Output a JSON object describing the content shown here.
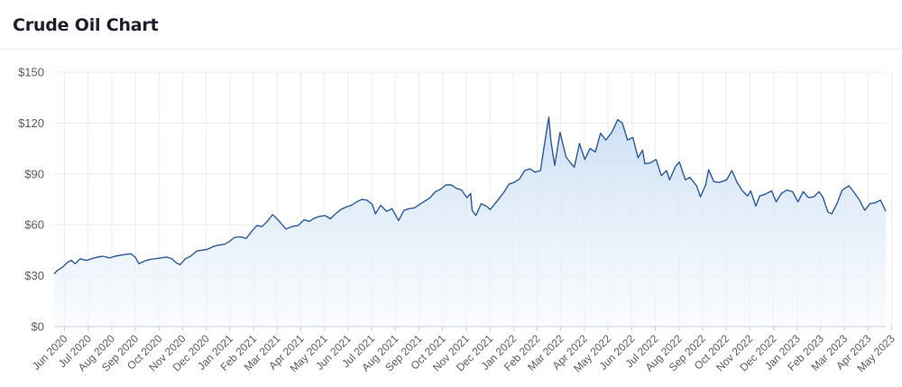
{
  "page": {
    "title": "Crude Oil Chart"
  },
  "colors": {
    "line": "#2a5a9e",
    "area_top": "#c9def3",
    "area_bottom": "#f6f9fd",
    "grid": "#ececec",
    "axis": "#c8cdd4",
    "tick_text": "#555b66"
  },
  "chart_data": {
    "type": "area",
    "title": "Crude Oil Chart",
    "xlabel": "",
    "ylabel": "",
    "y_ticks": [
      "$0",
      "$30",
      "$60",
      "$90",
      "$120",
      "$150"
    ],
    "y_tick_values": [
      0,
      30,
      60,
      90,
      120,
      150
    ],
    "ylim": [
      0,
      150
    ],
    "x_ticks": [
      "Jun 2020",
      "Jul 2020",
      "Aug 2020",
      "Sep 2020",
      "Oct 2020",
      "Nov 2020",
      "Dec 2020",
      "Jan 2021",
      "Feb 2021",
      "Mar 2021",
      "Apr 2021",
      "May 2021",
      "Jun 2021",
      "Jul 2021",
      "Aug 2021",
      "Sep 2021",
      "Oct 2021",
      "Nov 2021",
      "Dec 2021",
      "Jan 2022",
      "Feb 2022",
      "Mar 2022",
      "Apr 2022",
      "May 2022",
      "Jun 2022",
      "Jul 2022",
      "Aug 2022",
      "Sep 2022",
      "Oct 2022",
      "Nov 2022",
      "Dec 2022",
      "Jan 2023",
      "Feb 2023",
      "Mar 2023",
      "Apr 2023",
      "May 2023"
    ],
    "xlim": [
      "2020-05-18",
      "2023-05-31"
    ],
    "grid": true,
    "legend": "none",
    "series": [
      {
        "name": "",
        "points": [
          [
            "2020-05-18",
            31
          ],
          [
            "2020-05-22",
            33
          ],
          [
            "2020-05-29",
            35
          ],
          [
            "2020-06-05",
            38
          ],
          [
            "2020-06-10",
            39
          ],
          [
            "2020-06-15",
            37
          ],
          [
            "2020-06-22",
            40
          ],
          [
            "2020-06-30",
            39
          ],
          [
            "2020-07-07",
            40
          ],
          [
            "2020-07-15",
            41
          ],
          [
            "2020-07-22",
            41.5
          ],
          [
            "2020-07-31",
            40.5
          ],
          [
            "2020-08-07",
            41.5
          ],
          [
            "2020-08-14",
            42
          ],
          [
            "2020-08-21",
            42.5
          ],
          [
            "2020-08-28",
            43
          ],
          [
            "2020-09-03",
            41
          ],
          [
            "2020-09-08",
            37
          ],
          [
            "2020-09-15",
            38.5
          ],
          [
            "2020-09-22",
            39.5
          ],
          [
            "2020-09-30",
            40
          ],
          [
            "2020-10-07",
            40.5
          ],
          [
            "2020-10-15",
            41
          ],
          [
            "2020-10-22",
            40
          ],
          [
            "2020-10-28",
            37.5
          ],
          [
            "2020-11-02",
            36.5
          ],
          [
            "2020-11-09",
            40
          ],
          [
            "2020-11-16",
            41.5
          ],
          [
            "2020-11-24",
            44.5
          ],
          [
            "2020-11-30",
            45
          ],
          [
            "2020-12-08",
            45.5
          ],
          [
            "2020-12-15",
            47
          ],
          [
            "2020-12-22",
            48
          ],
          [
            "2020-12-31",
            48.5
          ],
          [
            "2021-01-06",
            50
          ],
          [
            "2021-01-13",
            52.5
          ],
          [
            "2021-01-20",
            53
          ],
          [
            "2021-01-29",
            52
          ],
          [
            "2021-02-05",
            56
          ],
          [
            "2021-02-12",
            59.5
          ],
          [
            "2021-02-19",
            59
          ],
          [
            "2021-02-26",
            62
          ],
          [
            "2021-03-05",
            66
          ],
          [
            "2021-03-10",
            64
          ],
          [
            "2021-03-18",
            60
          ],
          [
            "2021-03-23",
            57.5
          ],
          [
            "2021-03-31",
            59
          ],
          [
            "2021-04-08",
            59.5
          ],
          [
            "2021-04-16",
            63
          ],
          [
            "2021-04-23",
            62
          ],
          [
            "2021-04-30",
            64
          ],
          [
            "2021-05-07",
            65
          ],
          [
            "2021-05-14",
            65.5
          ],
          [
            "2021-05-21",
            63.5
          ],
          [
            "2021-05-28",
            66.5
          ],
          [
            "2021-06-04",
            69
          ],
          [
            "2021-06-11",
            70.5
          ],
          [
            "2021-06-18",
            71.5
          ],
          [
            "2021-06-25",
            73.5
          ],
          [
            "2021-07-02",
            75
          ],
          [
            "2021-07-09",
            74.5
          ],
          [
            "2021-07-16",
            72
          ],
          [
            "2021-07-20",
            66.5
          ],
          [
            "2021-07-27",
            71.5
          ],
          [
            "2021-08-04",
            68
          ],
          [
            "2021-08-11",
            69.5
          ],
          [
            "2021-08-20",
            62.5
          ],
          [
            "2021-08-27",
            68.5
          ],
          [
            "2021-09-03",
            69.5
          ],
          [
            "2021-09-10",
            70
          ],
          [
            "2021-09-17",
            72
          ],
          [
            "2021-09-24",
            74
          ],
          [
            "2021-10-01",
            76
          ],
          [
            "2021-10-08",
            79.5
          ],
          [
            "2021-10-15",
            81
          ],
          [
            "2021-10-22",
            83.5
          ],
          [
            "2021-10-29",
            83.5
          ],
          [
            "2021-11-05",
            81.5
          ],
          [
            "2021-11-12",
            80.5
          ],
          [
            "2021-11-19",
            76
          ],
          [
            "2021-11-24",
            78.5
          ],
          [
            "2021-11-26",
            68.5
          ],
          [
            "2021-12-01",
            65.5
          ],
          [
            "2021-12-08",
            72.5
          ],
          [
            "2021-12-15",
            71
          ],
          [
            "2021-12-20",
            69
          ],
          [
            "2021-12-31",
            75
          ],
          [
            "2022-01-07",
            79
          ],
          [
            "2022-01-14",
            84
          ],
          [
            "2022-01-21",
            85
          ],
          [
            "2022-01-28",
            87
          ],
          [
            "2022-02-04",
            92
          ],
          [
            "2022-02-11",
            93
          ],
          [
            "2022-02-18",
            91
          ],
          [
            "2022-02-25",
            92
          ],
          [
            "2022-03-01",
            103.5
          ],
          [
            "2022-03-08",
            123.5
          ],
          [
            "2022-03-11",
            109
          ],
          [
            "2022-03-16",
            95
          ],
          [
            "2022-03-23",
            114.5
          ],
          [
            "2022-03-31",
            100
          ],
          [
            "2022-04-07",
            96
          ],
          [
            "2022-04-11",
            94
          ],
          [
            "2022-04-18",
            108
          ],
          [
            "2022-04-25",
            98.5
          ],
          [
            "2022-05-02",
            105
          ],
          [
            "2022-05-09",
            103
          ],
          [
            "2022-05-16",
            114
          ],
          [
            "2022-05-23",
            110
          ],
          [
            "2022-05-31",
            114.5
          ],
          [
            "2022-06-08",
            122
          ],
          [
            "2022-06-14",
            120
          ],
          [
            "2022-06-21",
            110
          ],
          [
            "2022-06-28",
            111.5
          ],
          [
            "2022-07-05",
            99.5
          ],
          [
            "2022-07-11",
            104
          ],
          [
            "2022-07-14",
            96
          ],
          [
            "2022-07-21",
            96.5
          ],
          [
            "2022-07-29",
            98.5
          ],
          [
            "2022-08-05",
            89
          ],
          [
            "2022-08-12",
            92
          ],
          [
            "2022-08-16",
            86.5
          ],
          [
            "2022-08-24",
            94.5
          ],
          [
            "2022-08-29",
            97
          ],
          [
            "2022-09-06",
            86.5
          ],
          [
            "2022-09-12",
            88
          ],
          [
            "2022-09-21",
            83
          ],
          [
            "2022-09-26",
            76.5
          ],
          [
            "2022-10-03",
            83.5
          ],
          [
            "2022-10-07",
            92.5
          ],
          [
            "2022-10-14",
            85.5
          ],
          [
            "2022-10-21",
            85
          ],
          [
            "2022-10-31",
            86.5
          ],
          [
            "2022-11-07",
            92
          ],
          [
            "2022-11-14",
            85
          ],
          [
            "2022-11-21",
            80
          ],
          [
            "2022-11-28",
            77
          ],
          [
            "2022-12-02",
            80
          ],
          [
            "2022-12-09",
            71
          ],
          [
            "2022-12-14",
            77
          ],
          [
            "2022-12-21",
            78
          ],
          [
            "2022-12-30",
            80
          ],
          [
            "2023-01-05",
            73.5
          ],
          [
            "2023-01-12",
            78.5
          ],
          [
            "2023-01-19",
            80.5
          ],
          [
            "2023-01-27",
            79.5
          ],
          [
            "2023-02-03",
            73.5
          ],
          [
            "2023-02-10",
            79.5
          ],
          [
            "2023-02-17",
            76
          ],
          [
            "2023-02-24",
            76.5
          ],
          [
            "2023-03-03",
            79.5
          ],
          [
            "2023-03-08",
            76.5
          ],
          [
            "2023-03-15",
            67.5
          ],
          [
            "2023-03-20",
            66.5
          ],
          [
            "2023-03-27",
            72.5
          ],
          [
            "2023-04-03",
            80.5
          ],
          [
            "2023-04-12",
            83
          ],
          [
            "2023-04-19",
            79
          ],
          [
            "2023-04-26",
            74.5
          ],
          [
            "2023-05-03",
            68.5
          ],
          [
            "2023-05-10",
            72.5
          ],
          [
            "2023-05-17",
            73
          ],
          [
            "2023-05-24",
            74.5
          ],
          [
            "2023-05-31",
            68
          ]
        ]
      }
    ]
  }
}
